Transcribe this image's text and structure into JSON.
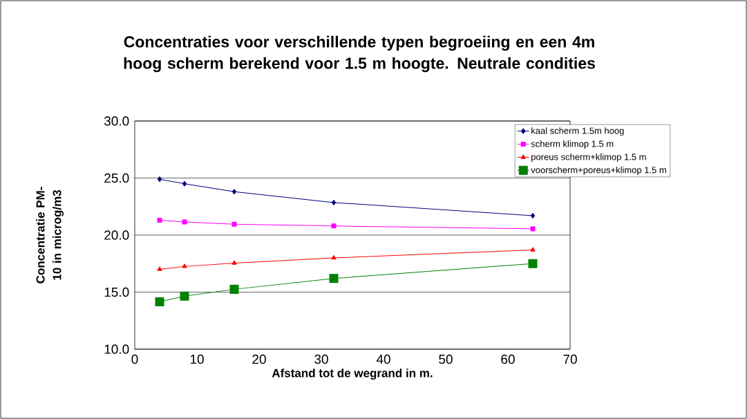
{
  "chart_data": {
    "type": "line",
    "title": "Concentraties voor verschillende typen begroeiing en een 4m hoog scherm berekend voor 1.5 m hoogte. Neutrale condities",
    "xlabel": "Afstand tot de wegrand in m.",
    "ylabel": "Concentratie PM-10 in microg/m3",
    "x": [
      4,
      8,
      16,
      32,
      64
    ],
    "series": [
      {
        "name": "kaal scherm 1.5m hoog",
        "color": "#000080",
        "marker": "diamond",
        "values": [
          24.9,
          24.5,
          23.8,
          22.85,
          21.7
        ]
      },
      {
        "name": "scherm klimop 1.5 m",
        "color": "#ff00ff",
        "marker": "square",
        "values": [
          21.3,
          21.15,
          20.95,
          20.8,
          20.55
        ]
      },
      {
        "name": "poreus scherm+klimop 1.5 m",
        "color": "#ff0000",
        "marker": "triangle",
        "values": [
          17.0,
          17.25,
          17.55,
          18.0,
          18.7
        ]
      },
      {
        "name": "voorscherm+poreus+klimop 1.5 m",
        "color": "#008000",
        "marker": "square",
        "values": [
          14.15,
          14.65,
          15.25,
          16.2,
          17.5
        ]
      }
    ],
    "xlim": [
      0,
      70
    ],
    "xticks": [
      0,
      10,
      20,
      30,
      40,
      50,
      60,
      70
    ],
    "ylim": [
      10,
      30
    ],
    "yticks": [
      {
        "value": 10,
        "label": "10.0"
      },
      {
        "value": 15,
        "label": "15.0"
      },
      {
        "value": 20,
        "label": "20.0"
      },
      {
        "value": 25,
        "label": "25.0"
      },
      {
        "value": 30,
        "label": "30.0"
      }
    ],
    "grid": "y",
    "legend": "top right",
    "line_style": "solid"
  }
}
